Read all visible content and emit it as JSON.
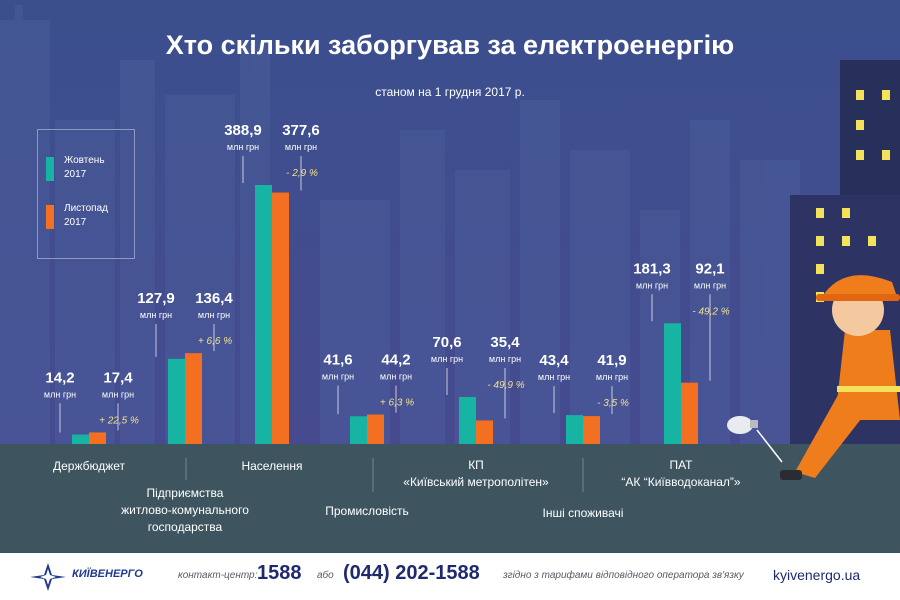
{
  "title": "Хто скільки заборгував за електроенергію",
  "subtitle": "станом на 1 грудня 2017 р.",
  "legend": [
    {
      "label": "Жовтень",
      "label2": "2017",
      "color": "#17b3a3"
    },
    {
      "label": "Листопад",
      "label2": "2017",
      "color": "#f36f21"
    }
  ],
  "chart_data": {
    "type": "bar",
    "title": "Хто скільки заборгував за електроенергію",
    "subtitle": "станом на 1 грудня 2017 р.",
    "unit": "млн грн",
    "categories": [
      [
        "Держбюджет"
      ],
      [
        "Підприємства",
        "житлово-комунального",
        "господарства"
      ],
      [
        "Населення"
      ],
      [
        "Промисловість"
      ],
      [
        "КП",
        "«Київський метрополітен»"
      ],
      [
        "Інші споживачі"
      ],
      [
        "ПАТ",
        "“АК “Київводоканал”»"
      ]
    ],
    "series": [
      {
        "name": "Жовтень 2017",
        "values": [
          14.2,
          127.9,
          388.9,
          41.6,
          70.6,
          43.4,
          181.3
        ]
      },
      {
        "name": "Листопад 2017",
        "values": [
          17.4,
          136.4,
          377.6,
          44.2,
          35.4,
          41.9,
          92.1
        ]
      }
    ],
    "value_labels": [
      [
        "14,2",
        "17,4"
      ],
      [
        "127,9",
        "136,4"
      ],
      [
        "388,9",
        "377,6"
      ],
      [
        "41,6",
        "44,2"
      ],
      [
        "70,6",
        "35,4"
      ],
      [
        "43,4",
        "41,9"
      ],
      [
        "181,3",
        "92,1"
      ]
    ],
    "changes": [
      "+ 22,5 %",
      "+ 6,6 %",
      "- 2,9 %",
      "+ 6,3 %",
      "- 49,9 %",
      "- 3,5 %",
      "- 49,2 %"
    ],
    "ylim": [
      0,
      400
    ],
    "grid": false,
    "legend_position": "top-left"
  },
  "footer": {
    "logo": "КИЇВЕНЕРГО",
    "contact_label": "контакт-центр:",
    "short_number": "1588",
    "or": "або",
    "phone": "(044) 202-1588",
    "tariff_note": "згідно з тарифами відповідного оператора зв'язку",
    "website": "kyivenergo.ua"
  },
  "colors": {
    "sky_top": "#3b4e8c",
    "sky_bottom": "#4b4a92",
    "ground": "#3f5560",
    "oct": "#17b3a3",
    "nov": "#f36f21",
    "change_text": "#f2e28a"
  }
}
